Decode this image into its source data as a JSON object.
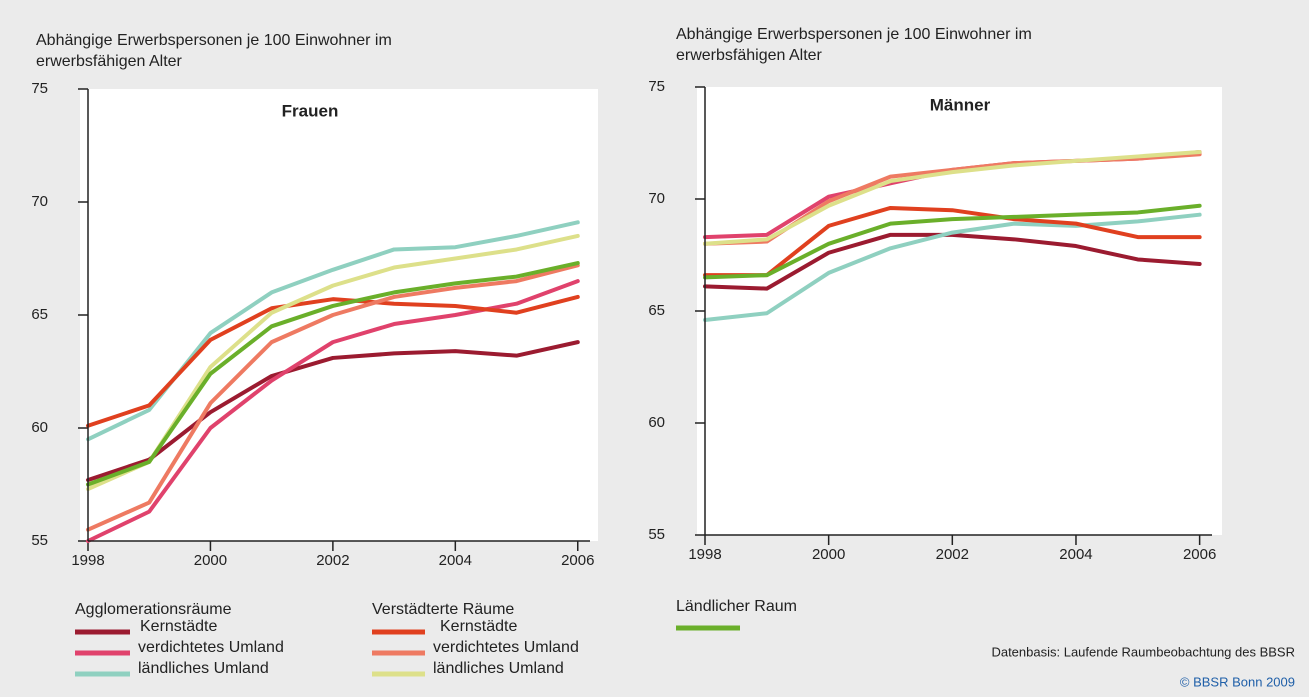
{
  "chart_data": [
    {
      "type": "line",
      "title": "Frauen",
      "ylabel": [
        "Abhängige Erwerbspersonen je 100 Einwohner im",
        "erwerbsfähigen Alter"
      ],
      "x": [
        1998,
        1999,
        2000,
        2001,
        2002,
        2003,
        2004,
        2005,
        2006
      ],
      "xlim": [
        1998,
        2006.2
      ],
      "xticks": [
        1998,
        2000,
        2002,
        2004,
        2006
      ],
      "ylim": [
        55,
        75
      ],
      "yticks": [
        55,
        60,
        65,
        70,
        75
      ],
      "series": [
        {
          "name": "Kernstädte",
          "color": "#9b1b30",
          "values": [
            57.7,
            58.6,
            60.7,
            62.3,
            63.1,
            63.3,
            63.4,
            63.2,
            63.8
          ]
        },
        {
          "name": "verdichtetes Umland",
          "color": "#e0426c",
          "values": [
            55.0,
            56.3,
            60.0,
            62.1,
            63.8,
            64.6,
            65.0,
            65.5,
            66.5
          ]
        },
        {
          "name": "ländliches Umland",
          "color": "#8fd0c0",
          "values": [
            59.5,
            60.8,
            64.2,
            66.0,
            67.0,
            67.9,
            68.0,
            68.5,
            69.1
          ]
        },
        {
          "name": "Kernstädte",
          "color": "#e0401f",
          "values": [
            60.1,
            61.0,
            63.9,
            65.3,
            65.7,
            65.5,
            65.4,
            65.1,
            65.8
          ]
        },
        {
          "name": "verdichtetes Umland",
          "color": "#ee7a62",
          "values": [
            55.5,
            56.7,
            61.1,
            63.8,
            65.0,
            65.8,
            66.2,
            66.5,
            67.2
          ]
        },
        {
          "name": "ländliches Umland",
          "color": "#dde08a",
          "values": [
            57.3,
            58.5,
            62.7,
            65.1,
            66.3,
            67.1,
            67.5,
            67.9,
            68.5
          ]
        },
        {
          "name": "Ländlicher Raum",
          "color": "#6aaf2a",
          "values": [
            57.5,
            58.5,
            62.4,
            64.5,
            65.4,
            66.0,
            66.4,
            66.7,
            67.3
          ]
        }
      ]
    },
    {
      "type": "line",
      "title": "Männer",
      "ylabel": [
        "Abhängige Erwerbspersonen je 100 Einwohner im",
        "erwerbsfähigen Alter"
      ],
      "x": [
        1998,
        1999,
        2000,
        2001,
        2002,
        2003,
        2004,
        2005,
        2006
      ],
      "xlim": [
        1998,
        2006.2
      ],
      "xticks": [
        1998,
        2000,
        2002,
        2004,
        2006
      ],
      "ylim": [
        55,
        75
      ],
      "yticks": [
        55,
        60,
        65,
        70,
        75
      ],
      "series": [
        {
          "color": "#9b1b30",
          "values": [
            66.1,
            66.0,
            67.6,
            68.4,
            68.4,
            68.2,
            67.9,
            67.3,
            67.1
          ]
        },
        {
          "color": "#e0426c",
          "values": [
            68.3,
            68.4,
            70.1,
            70.7,
            71.3,
            71.6,
            71.7,
            71.8,
            72.1
          ]
        },
        {
          "color": "#8fd0c0",
          "values": [
            64.6,
            64.9,
            66.7,
            67.8,
            68.5,
            68.9,
            68.8,
            69.0,
            69.3
          ]
        },
        {
          "color": "#e0401f",
          "values": [
            66.6,
            66.6,
            68.8,
            69.6,
            69.5,
            69.1,
            68.9,
            68.3,
            68.3
          ]
        },
        {
          "color": "#ee7a62",
          "values": [
            68.0,
            68.1,
            69.9,
            71.0,
            71.3,
            71.6,
            71.7,
            71.8,
            72.0
          ]
        },
        {
          "color": "#dde08a",
          "values": [
            68.0,
            68.2,
            69.7,
            70.8,
            71.2,
            71.5,
            71.7,
            71.9,
            72.1
          ]
        },
        {
          "color": "#6aaf2a",
          "values": [
            66.5,
            66.6,
            68.0,
            68.9,
            69.1,
            69.2,
            69.3,
            69.4,
            69.7
          ]
        }
      ]
    }
  ],
  "legend_groups": [
    "Agglomerationsräume",
    "Verstädterte Räume"
  ],
  "source": "Datenbasis: Laufende Raumbeobachtung  des BBSR",
  "copyright": "© BBSR Bonn 2009"
}
